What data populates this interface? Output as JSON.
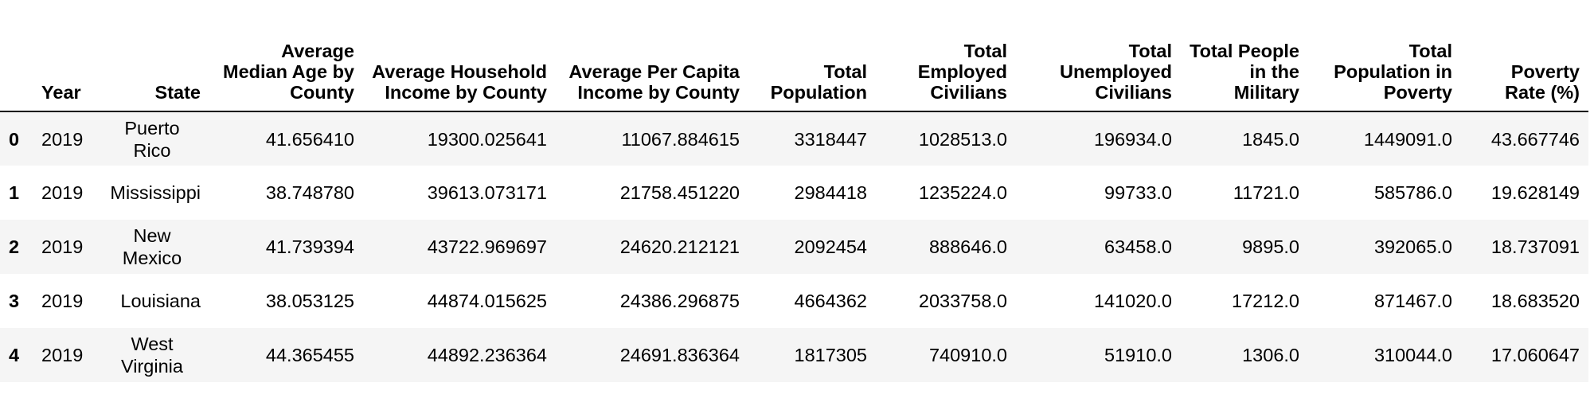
{
  "table": {
    "columns": [
      "",
      "Year",
      "State",
      "Average Median Age by County",
      "Average Household Income by County",
      "Average Per Capita Income by County",
      "Total Population",
      "Total Employed Civilians",
      "Total Unemployed Civilians",
      "Total People in the Military",
      "Total Population in Poverty",
      "Poverty Rate (%)"
    ],
    "rows": [
      [
        "0",
        "2019",
        "Puerto Rico",
        "41.656410",
        "19300.025641",
        "11067.884615",
        "3318447",
        "1028513.0",
        "196934.0",
        "1845.0",
        "1449091.0",
        "43.667746"
      ],
      [
        "1",
        "2019",
        "Mississippi",
        "38.748780",
        "39613.073171",
        "21758.451220",
        "2984418",
        "1235224.0",
        "99733.0",
        "11721.0",
        "585786.0",
        "19.628149"
      ],
      [
        "2",
        "2019",
        "New Mexico",
        "41.739394",
        "43722.969697",
        "24620.212121",
        "2092454",
        "888646.0",
        "63458.0",
        "9895.0",
        "392065.0",
        "18.737091"
      ],
      [
        "3",
        "2019",
        "Louisiana",
        "38.053125",
        "44874.015625",
        "24386.296875",
        "4664362",
        "2033758.0",
        "141020.0",
        "17212.0",
        "871467.0",
        "18.683520"
      ],
      [
        "4",
        "2019",
        "West Virginia",
        "44.365455",
        "44892.236364",
        "24691.836364",
        "1817305",
        "740910.0",
        "51910.0",
        "1306.0",
        "310044.0",
        "17.060647"
      ]
    ]
  }
}
